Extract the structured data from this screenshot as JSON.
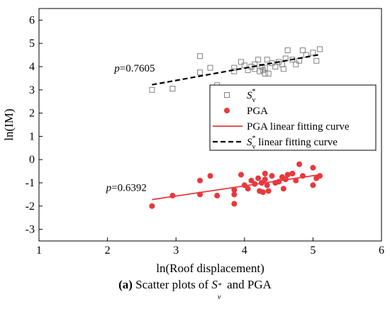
{
  "caption": {
    "label": "(a)",
    "pre_text": " Scatter plots of ",
    "var_base": "S",
    "var_sub": "v",
    "var_sup": "*",
    "post_text": " and PGA"
  },
  "chart_data": {
    "type": "scatter",
    "xlabel": "ln(Roof displacement)",
    "ylabel": "ln(IM)",
    "xlim": [
      1,
      6
    ],
    "ylim": [
      -3.5,
      6.5
    ],
    "xticks": [
      "1",
      "2",
      "3",
      "4",
      "5",
      "6"
    ],
    "yticks": [
      "-3",
      "-2",
      "-1",
      "0",
      "1",
      "2",
      "3",
      "4",
      "5",
      "6"
    ],
    "grid": false,
    "legend_placement": "center-right",
    "series": [
      {
        "name": "S_v^*",
        "legend_base": "S",
        "legend_sub": "v",
        "legend_sup": "*",
        "marker": "open-square",
        "color": "#808080",
        "points": [
          [
            2.65,
            3.0
          ],
          [
            2.95,
            3.05
          ],
          [
            3.35,
            3.75
          ],
          [
            3.35,
            4.45
          ],
          [
            3.5,
            3.95
          ],
          [
            3.6,
            3.2
          ],
          [
            3.85,
            3.8
          ],
          [
            3.85,
            3.95
          ],
          [
            3.95,
            4.2
          ],
          [
            4.0,
            4.05
          ],
          [
            4.05,
            3.85
          ],
          [
            4.1,
            4.0
          ],
          [
            4.15,
            4.1
          ],
          [
            4.15,
            3.9
          ],
          [
            4.2,
            4.3
          ],
          [
            4.22,
            3.8
          ],
          [
            4.25,
            4.0
          ],
          [
            4.27,
            3.85
          ],
          [
            4.3,
            3.7
          ],
          [
            4.3,
            3.95
          ],
          [
            4.33,
            4.3
          ],
          [
            4.35,
            3.7
          ],
          [
            4.4,
            4.15
          ],
          [
            4.45,
            4.0
          ],
          [
            4.5,
            4.2
          ],
          [
            4.55,
            4.1
          ],
          [
            4.57,
            3.9
          ],
          [
            4.6,
            4.35
          ],
          [
            4.63,
            4.7
          ],
          [
            4.7,
            4.3
          ],
          [
            4.75,
            4.1
          ],
          [
            4.8,
            4.25
          ],
          [
            4.85,
            4.7
          ],
          [
            4.9,
            4.5
          ],
          [
            5.0,
            4.6
          ],
          [
            5.05,
            4.25
          ],
          [
            5.1,
            4.75
          ]
        ]
      },
      {
        "name": "PGA",
        "marker": "filled-circle",
        "color": "#e8383d",
        "points": [
          [
            2.65,
            -2.0
          ],
          [
            2.95,
            -1.55
          ],
          [
            3.35,
            -1.5
          ],
          [
            3.35,
            -0.9
          ],
          [
            3.5,
            -0.7
          ],
          [
            3.6,
            -1.55
          ],
          [
            3.85,
            -1.3
          ],
          [
            3.85,
            -1.5
          ],
          [
            3.85,
            -1.9
          ],
          [
            3.95,
            -0.65
          ],
          [
            4.0,
            -1.1
          ],
          [
            4.05,
            -1.25
          ],
          [
            4.1,
            -0.9
          ],
          [
            4.15,
            -1.05
          ],
          [
            4.2,
            -0.8
          ],
          [
            4.22,
            -1.35
          ],
          [
            4.25,
            -1.0
          ],
          [
            4.27,
            -1.4
          ],
          [
            4.3,
            -0.6
          ],
          [
            4.3,
            -0.85
          ],
          [
            4.33,
            -1.1
          ],
          [
            4.35,
            -1.35
          ],
          [
            4.4,
            -0.7
          ],
          [
            4.45,
            -1.0
          ],
          [
            4.5,
            -0.95
          ],
          [
            4.55,
            -0.75
          ],
          [
            4.57,
            -1.25
          ],
          [
            4.6,
            -0.85
          ],
          [
            4.63,
            -0.65
          ],
          [
            4.7,
            -0.6
          ],
          [
            4.75,
            -0.9
          ],
          [
            4.8,
            -0.2
          ],
          [
            4.85,
            -0.7
          ],
          [
            5.0,
            -1.1
          ],
          [
            5.0,
            -0.35
          ],
          [
            5.05,
            -0.8
          ],
          [
            5.1,
            -0.7
          ]
        ]
      },
      {
        "name": "PGA linear fitting curve",
        "type": "line",
        "style": "solid",
        "color": "#e8383d",
        "x": [
          2.65,
          5.1
        ],
        "y": [
          -1.72,
          -0.65
        ]
      },
      {
        "name": "S_v^* linear fitting curve",
        "legend_base": "S",
        "legend_sub": "v",
        "legend_sup": "*",
        "legend_tail": "  linear fitting curve",
        "type": "line",
        "style": "dashed",
        "color": "#000000",
        "x": [
          2.65,
          5.1
        ],
        "y": [
          3.22,
          4.52
        ]
      }
    ],
    "annotations": [
      {
        "label": "p",
        "text": "=0.7605",
        "x": 2.1,
        "y": 3.78
      },
      {
        "label": "p",
        "text": "=0.6392",
        "x": 1.98,
        "y": -1.35
      }
    ]
  }
}
